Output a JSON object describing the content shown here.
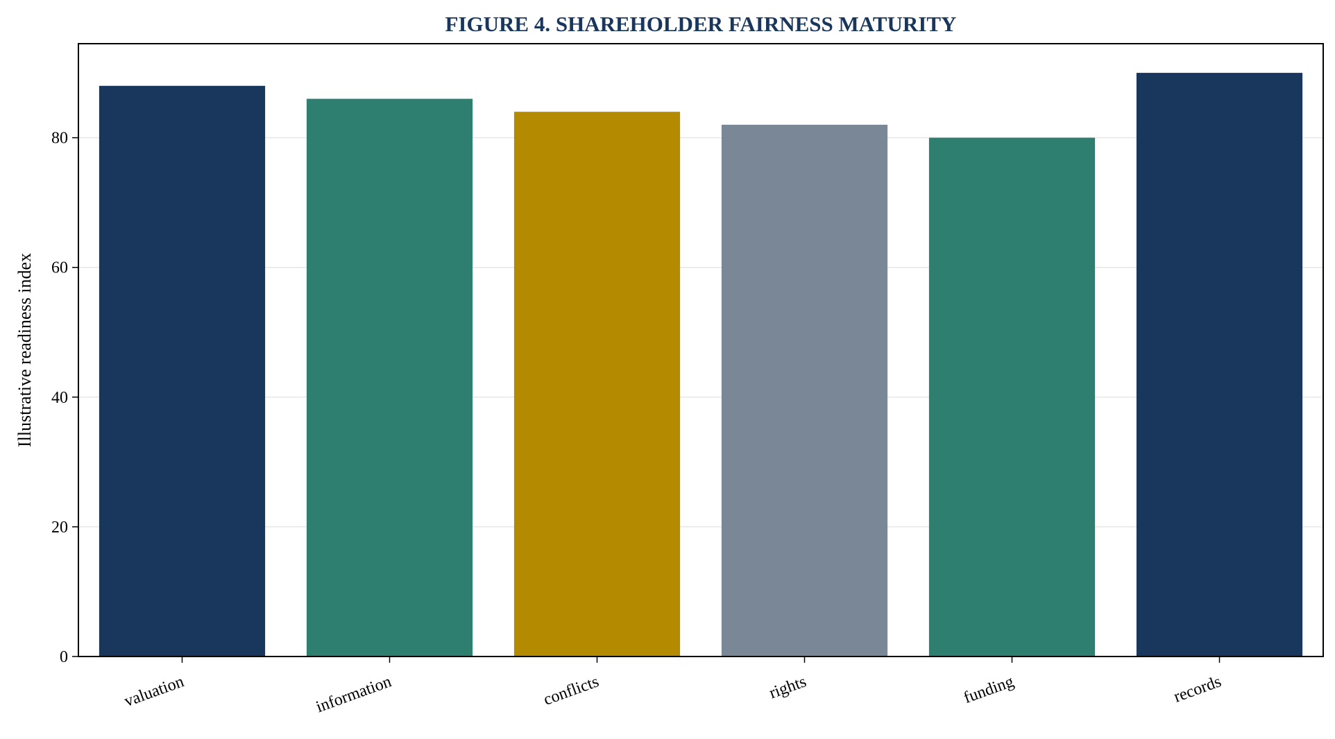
{
  "chart_data": {
    "type": "bar",
    "title": "FIGURE 4. SHAREHOLDER FAIRNESS MATURITY",
    "xlabel": "",
    "ylabel": "Illustrative readiness index",
    "categories": [
      "valuation",
      "information",
      "conflicts",
      "rights",
      "funding",
      "records"
    ],
    "values": [
      88,
      86,
      84,
      82,
      80,
      90
    ],
    "bar_colors": [
      "#19365c",
      "#2e7f6f",
      "#b48a00",
      "#7a8796",
      "#2e7f6f",
      "#19365c"
    ],
    "ylim": [
      0,
      94.5
    ],
    "yticks": [
      0,
      20,
      40,
      60,
      80
    ],
    "ytick_labels": [
      "0",
      "20",
      "40",
      "60",
      "80"
    ],
    "grid": "horizontal",
    "legend": "none",
    "title_color": "#19365c"
  }
}
